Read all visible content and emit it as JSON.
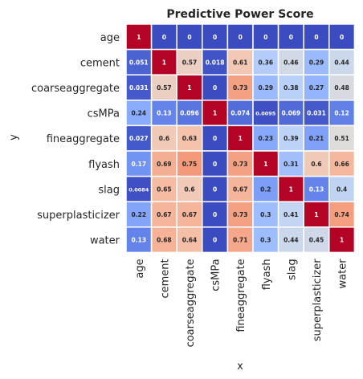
{
  "chart_data": {
    "type": "heatmap",
    "title": "Predictive Power Score",
    "xlabel": "x",
    "ylabel": "y",
    "x_categories": [
      "age",
      "cement",
      "coarseaggregate",
      "csMPa",
      "fineaggregate",
      "flyash",
      "slag",
      "superplasticizer",
      "water"
    ],
    "y_categories": [
      "age",
      "cement",
      "coarseaggregate",
      "csMPa",
      "fineaggregate",
      "flyash",
      "slag",
      "superplasticizer",
      "water"
    ],
    "values": [
      [
        1,
        0,
        0,
        0,
        0,
        0,
        0,
        0,
        0
      ],
      [
        0.051,
        1,
        0.57,
        0.018,
        0.61,
        0.36,
        0.46,
        0.29,
        0.44
      ],
      [
        0.031,
        0.57,
        1,
        0,
        0.73,
        0.29,
        0.38,
        0.27,
        0.48
      ],
      [
        0.24,
        0.13,
        0.096,
        1,
        0.074,
        0.0095,
        0.069,
        0.031,
        0.12
      ],
      [
        0.027,
        0.6,
        0.63,
        0,
        1,
        0.23,
        0.39,
        0.21,
        0.51
      ],
      [
        0.17,
        0.69,
        0.75,
        0,
        0.73,
        1,
        0.31,
        0.6,
        0.66
      ],
      [
        0.0084,
        0.65,
        0.6,
        0,
        0.67,
        0.2,
        1,
        0.13,
        0.4
      ],
      [
        0.22,
        0.67,
        0.67,
        0,
        0.73,
        0.3,
        0.41,
        1,
        0.74
      ],
      [
        0.13,
        0.68,
        0.64,
        0,
        0.71,
        0.3,
        0.44,
        0.45,
        1
      ]
    ],
    "value_range": [
      0,
      1
    ],
    "colormap": "coolwarm",
    "annotated": true,
    "colorbar": false,
    "cell_border_color": "#ffffff"
  }
}
